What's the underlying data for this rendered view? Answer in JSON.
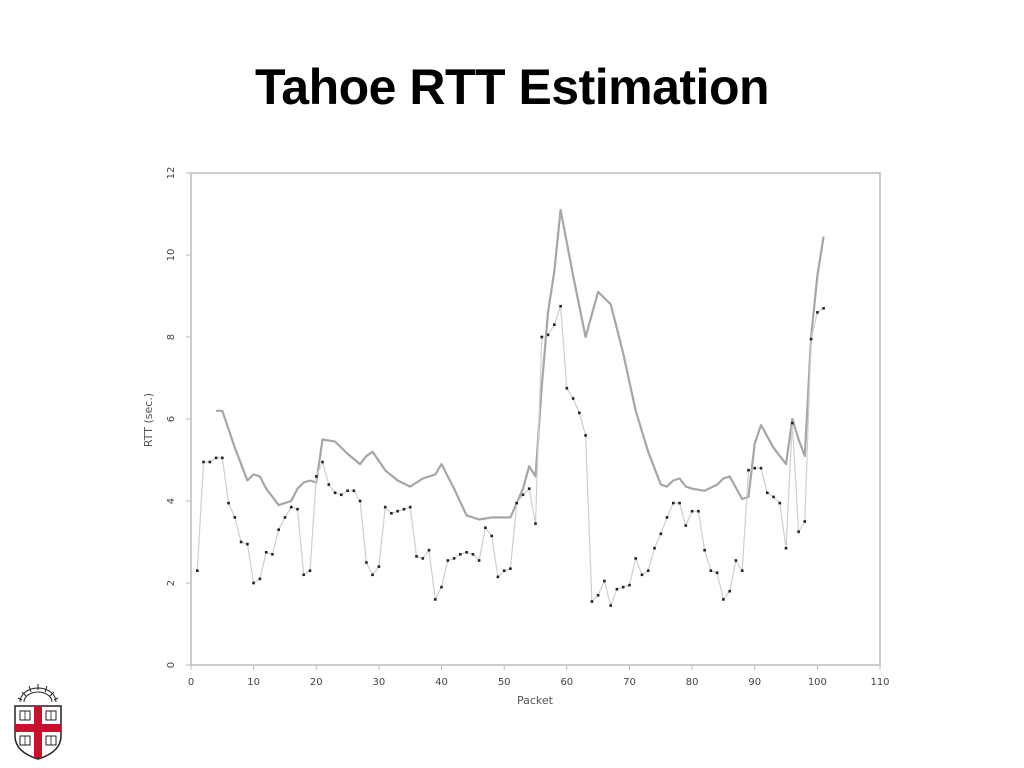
{
  "slide": {
    "title": "Tahoe RTT Estimation"
  },
  "colors": {
    "frame": "#bbbbbb",
    "estimate_line": "#a6a6a6",
    "sample_line": "#cfcfcf",
    "sample_marker": "#222222",
    "logo_red": "#c8102e"
  },
  "logo": {
    "name": "shield-crest"
  },
  "chart_data": {
    "type": "line",
    "title": "",
    "xlabel": "Packet",
    "ylabel": "RTT (sec.)",
    "xlim": [
      0,
      110
    ],
    "ylim": [
      0,
      12
    ],
    "x_ticks": [
      "0",
      "10",
      "20",
      "30",
      "40",
      "50",
      "60",
      "70",
      "80",
      "90",
      "100",
      "110"
    ],
    "y_ticks": [
      "0",
      "2",
      "4",
      "6",
      "8",
      "10",
      "12"
    ],
    "grid": false,
    "legend": "none",
    "series": [
      {
        "role": "estimate",
        "style": "line",
        "x": [
          4,
          5,
          7,
          9,
          10,
          11,
          12,
          14,
          16,
          17,
          18,
          19,
          20,
          21,
          23,
          25,
          27,
          28,
          29,
          31,
          33,
          35,
          37,
          39,
          40,
          42,
          44,
          46,
          48,
          50,
          51,
          53,
          54,
          55,
          56,
          57,
          58,
          59,
          61,
          63,
          65,
          67,
          69,
          71,
          73,
          75,
          76,
          77,
          78,
          79,
          80,
          82,
          84,
          85,
          86,
          88,
          89,
          90,
          91,
          93,
          95,
          96,
          97,
          98,
          99,
          100,
          101
        ],
        "y": [
          6.2,
          6.2,
          5.3,
          4.5,
          4.65,
          4.6,
          4.3,
          3.9,
          4.0,
          4.3,
          4.45,
          4.5,
          4.45,
          5.5,
          5.45,
          5.15,
          4.9,
          5.1,
          5.2,
          4.75,
          4.5,
          4.35,
          4.55,
          4.65,
          4.9,
          4.3,
          3.65,
          3.55,
          3.6,
          3.6,
          3.6,
          4.3,
          4.85,
          4.6,
          6.8,
          8.6,
          9.6,
          11.1,
          9.5,
          8.0,
          9.1,
          8.8,
          7.6,
          6.2,
          5.2,
          4.4,
          4.35,
          4.5,
          4.55,
          4.35,
          4.3,
          4.25,
          4.4,
          4.55,
          4.6,
          4.05,
          4.1,
          5.4,
          5.85,
          5.3,
          4.9,
          6.0,
          5.5,
          5.1,
          8.0,
          9.5,
          10.45
        ]
      },
      {
        "role": "samples",
        "style": "line+markers",
        "x": [
          1,
          2,
          3,
          4,
          5,
          6,
          7,
          8,
          9,
          10,
          11,
          12,
          13,
          14,
          15,
          16,
          17,
          18,
          19,
          20,
          21,
          22,
          23,
          24,
          25,
          26,
          27,
          28,
          29,
          30,
          31,
          32,
          33,
          34,
          35,
          36,
          37,
          38,
          39,
          40,
          41,
          42,
          43,
          44,
          45,
          46,
          47,
          48,
          49,
          50,
          51,
          52,
          53,
          54,
          55,
          56,
          57,
          58,
          59,
          60,
          61,
          62,
          63,
          64,
          65,
          66,
          67,
          68,
          69,
          70,
          71,
          72,
          73,
          74,
          75,
          76,
          77,
          78,
          79,
          80,
          81,
          82,
          83,
          84,
          85,
          86,
          87,
          88,
          89,
          90,
          91,
          92,
          93,
          94,
          95,
          96,
          97,
          98,
          99,
          100,
          101
        ],
        "y": [
          2.3,
          4.95,
          4.95,
          5.05,
          5.05,
          3.95,
          3.6,
          3.0,
          2.95,
          2.0,
          2.1,
          2.75,
          2.7,
          3.3,
          3.6,
          3.85,
          3.8,
          2.2,
          2.3,
          4.6,
          4.95,
          4.4,
          4.2,
          4.15,
          4.25,
          4.25,
          4.0,
          2.5,
          2.2,
          2.4,
          3.85,
          3.7,
          3.75,
          3.8,
          3.85,
          2.65,
          2.6,
          2.8,
          1.6,
          1.9,
          2.55,
          2.6,
          2.7,
          2.75,
          2.7,
          2.55,
          3.35,
          3.15,
          2.15,
          2.3,
          2.35,
          3.95,
          4.15,
          4.3,
          3.45,
          8.0,
          8.05,
          8.3,
          8.75,
          6.75,
          6.5,
          6.15,
          5.6,
          1.55,
          1.7,
          2.05,
          1.45,
          1.85,
          1.9,
          1.95,
          2.6,
          2.2,
          2.3,
          2.85,
          3.2,
          3.6,
          3.95,
          3.95,
          3.4,
          3.75,
          3.75,
          2.8,
          2.3,
          2.25,
          1.6,
          1.8,
          2.55,
          2.3,
          4.75,
          4.8,
          4.8,
          4.2,
          4.1,
          3.95,
          2.85,
          5.9,
          3.25,
          3.5,
          7.95,
          8.6,
          8.7
        ]
      }
    ]
  }
}
